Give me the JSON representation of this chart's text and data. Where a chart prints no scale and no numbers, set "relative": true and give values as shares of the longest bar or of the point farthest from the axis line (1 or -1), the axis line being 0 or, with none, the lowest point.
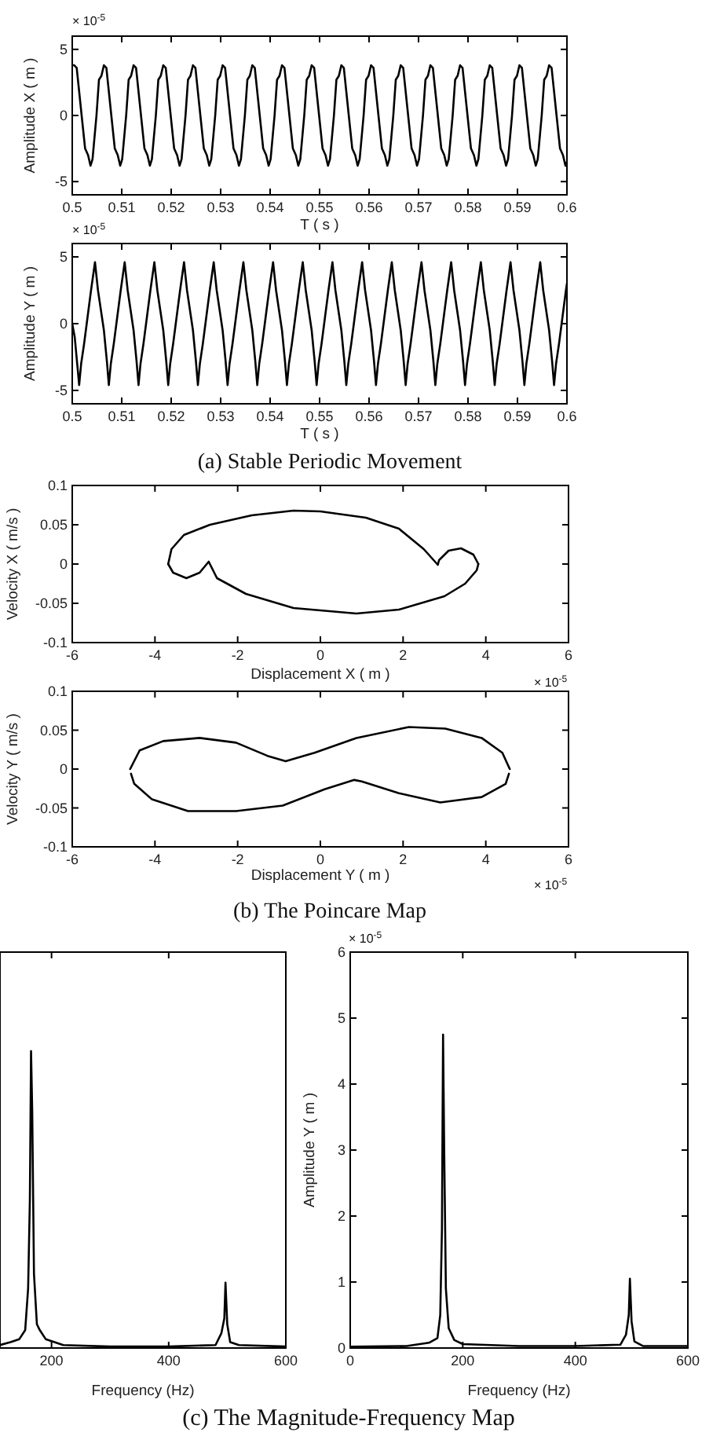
{
  "chart_data": [
    {
      "type": "line",
      "xlabel": "T ( s )",
      "ylabel": "Amplitude X ( m )",
      "xlim": [
        0.5,
        0.6
      ],
      "ylim": [
        -6,
        6
      ],
      "xticks": [
        0.5,
        0.51,
        0.52,
        0.53,
        0.54,
        0.55,
        0.56,
        0.57,
        0.58,
        0.59,
        0.6
      ],
      "yticks": [
        -5,
        0,
        5
      ],
      "annotations": [
        "× 10$^{-5}$"
      ],
      "series": [
        {
          "color": "#000000",
          "x": [
            0.5,
            0.5004,
            0.5009,
            0.5019,
            0.5026,
            0.5032,
            0.5037,
            0.5041,
            0.5049,
            0.5054,
            0.5059,
            0.5064,
            0.5069,
            0.5079,
            0.5086,
            0.5092,
            0.5097,
            0.5101,
            0.5109,
            0.5114,
            0.5119,
            0.5124,
            0.5129,
            0.5139,
            0.5146,
            0.5152,
            0.5157,
            0.5161,
            0.5169,
            0.5174,
            0.5179,
            0.5184,
            0.5189,
            0.5199,
            0.5206,
            0.5212,
            0.5217,
            0.5221,
            0.5229,
            0.5234,
            0.5239,
            0.5244,
            0.5249,
            0.5259,
            0.5266,
            0.5272,
            0.5277,
            0.5281,
            0.5289,
            0.5294,
            0.5299,
            0.5304,
            0.5309,
            0.5319,
            0.5326,
            0.5332,
            0.5337,
            0.5341,
            0.5349,
            0.5354,
            0.5359,
            0.5364,
            0.5369,
            0.5379,
            0.5386,
            0.5392,
            0.5397,
            0.5401,
            0.5409,
            0.5414,
            0.5419,
            0.5424,
            0.5429,
            0.5439,
            0.5446,
            0.5452,
            0.5457,
            0.5461,
            0.5469,
            0.5474,
            0.5479,
            0.5484,
            0.5489,
            0.5499,
            0.5506,
            0.5512,
            0.5517,
            0.5521,
            0.5529,
            0.5534,
            0.5539,
            0.5544,
            0.5549,
            0.5559,
            0.5566,
            0.5572,
            0.5577,
            0.5581,
            0.5589,
            0.5594,
            0.5599,
            0.5604,
            0.5609,
            0.5619,
            0.5626,
            0.5632,
            0.5637,
            0.5641,
            0.5649,
            0.5654,
            0.5659,
            0.5664,
            0.5669,
            0.5679,
            0.5686,
            0.5692,
            0.5697,
            0.5701,
            0.5709,
            0.5714,
            0.5719,
            0.5724,
            0.5729,
            0.5739,
            0.5746,
            0.5752,
            0.5757,
            0.5761,
            0.5769,
            0.5774,
            0.5779,
            0.5784,
            0.5789,
            0.5799,
            0.5806,
            0.5812,
            0.5817,
            0.5821,
            0.5829,
            0.5834,
            0.5839,
            0.5844,
            0.5849,
            0.5859,
            0.5866,
            0.5872,
            0.5877,
            0.5881,
            0.5889,
            0.5894,
            0.5899,
            0.5904,
            0.5909,
            0.5919,
            0.5926,
            0.5932,
            0.5937,
            0.5941,
            0.5949,
            0.5954,
            0.5959,
            0.5964,
            0.5969,
            0.5979,
            0.5986,
            0.5992,
            0.5997,
            0.6
          ],
          "values": [
            3.8,
            3.8,
            3.6,
            0,
            -2.5,
            -3,
            -3.8,
            -3.3,
            0,
            2.7,
            3,
            3.8,
            3.6,
            0,
            -2.5,
            -3,
            -3.8,
            -3.3,
            0,
            2.7,
            3,
            3.8,
            3.6,
            0,
            -2.5,
            -3,
            -3.8,
            -3.3,
            0,
            2.7,
            3,
            3.8,
            3.6,
            0,
            -2.5,
            -3,
            -3.8,
            -3.3,
            0,
            2.7,
            3,
            3.8,
            3.6,
            0,
            -2.5,
            -3,
            -3.8,
            -3.3,
            0,
            2.7,
            3,
            3.8,
            3.6,
            0,
            -2.5,
            -3,
            -3.8,
            -3.3,
            0,
            2.7,
            3,
            3.8,
            3.6,
            0,
            -2.5,
            -3,
            -3.8,
            -3.3,
            0,
            2.7,
            3,
            3.8,
            3.6,
            0,
            -2.5,
            -3,
            -3.8,
            -3.3,
            0,
            2.7,
            3,
            3.8,
            3.6,
            0,
            -2.5,
            -3,
            -3.8,
            -3.3,
            0,
            2.7,
            3,
            3.8,
            3.6,
            0,
            -2.5,
            -3,
            -3.8,
            -3.3,
            0,
            2.7,
            3,
            3.8,
            3.6,
            0,
            -2.5,
            -3,
            -3.8,
            -3.3,
            0,
            2.7,
            3,
            3.8,
            3.6,
            0,
            -2.5,
            -3,
            -3.8,
            -3.3,
            0,
            2.7,
            3,
            3.8,
            3.6,
            0,
            -2.5,
            -3,
            -3.8,
            -3.3,
            0,
            2.7,
            3,
            3.8,
            3.6,
            0,
            -2.5,
            -3,
            -3.8,
            -3.3,
            0,
            2.7,
            3,
            3.8,
            3.6,
            0,
            -2.5,
            -3,
            -3.8,
            -3.3,
            0,
            2.7,
            3,
            3.8,
            3.6,
            0,
            -2.5,
            -3,
            -3.8,
            -3.3,
            0,
            2.7,
            3,
            3.8,
            3.6,
            0,
            -2.5,
            -3,
            -3.8,
            -3.5
          ]
        }
      ]
    },
    {
      "type": "line",
      "xlabel": "T ( s )",
      "ylabel": "Amplitude Y ( m )",
      "xlim": [
        0.5,
        0.6
      ],
      "ylim": [
        -6,
        6
      ],
      "xticks": [
        0.5,
        0.51,
        0.52,
        0.53,
        0.54,
        0.55,
        0.56,
        0.57,
        0.58,
        0.59,
        0.6
      ],
      "yticks": [
        -5,
        0,
        5
      ],
      "annotations": [
        "× 10$^{-5}$",
        "(a) Stable Periodic Movement"
      ],
      "series": [
        {
          "color": "#000000",
          "x": [
            0.5,
            0.5005,
            0.501,
            0.5014,
            0.5018,
            0.5024,
            0.5031,
            0.5038,
            0.5046,
            0.5052,
            0.5058,
            0.5064,
            0.507,
            0.5074,
            0.5078,
            0.5084,
            0.5091,
            0.5098,
            0.5106,
            0.5112,
            0.5118,
            0.5124,
            0.513,
            0.5134,
            0.5138,
            0.5144,
            0.5151,
            0.5158,
            0.5166,
            0.5172,
            0.5178,
            0.5184,
            0.519,
            0.5194,
            0.5198,
            0.5204,
            0.5211,
            0.5218,
            0.5226,
            0.5232,
            0.5238,
            0.5244,
            0.525,
            0.5254,
            0.5258,
            0.5264,
            0.5271,
            0.5278,
            0.5286,
            0.5292,
            0.5298,
            0.5304,
            0.531,
            0.5314,
            0.5318,
            0.5324,
            0.5331,
            0.5338,
            0.5346,
            0.5352,
            0.5358,
            0.5364,
            0.537,
            0.5374,
            0.5378,
            0.5384,
            0.5391,
            0.5398,
            0.5406,
            0.5412,
            0.5418,
            0.5424,
            0.543,
            0.5434,
            0.5438,
            0.5444,
            0.5451,
            0.5458,
            0.5466,
            0.5472,
            0.5478,
            0.5484,
            0.549,
            0.5494,
            0.5498,
            0.5504,
            0.5511,
            0.5518,
            0.5526,
            0.5532,
            0.5538,
            0.5544,
            0.555,
            0.5554,
            0.5558,
            0.5564,
            0.5571,
            0.5578,
            0.5586,
            0.5592,
            0.5598,
            0.5604,
            0.561,
            0.5614,
            0.5618,
            0.5624,
            0.5631,
            0.5638,
            0.5646,
            0.5652,
            0.5658,
            0.5664,
            0.567,
            0.5674,
            0.5678,
            0.5684,
            0.5691,
            0.5698,
            0.5706,
            0.5712,
            0.5718,
            0.5724,
            0.573,
            0.5734,
            0.5738,
            0.5744,
            0.5751,
            0.5758,
            0.5766,
            0.5772,
            0.5778,
            0.5784,
            0.579,
            0.5794,
            0.5798,
            0.5804,
            0.5811,
            0.5818,
            0.5826,
            0.5832,
            0.5838,
            0.5844,
            0.585,
            0.5854,
            0.5858,
            0.5864,
            0.5871,
            0.5878,
            0.5886,
            0.5892,
            0.5898,
            0.5904,
            0.591,
            0.5914,
            0.5918,
            0.5924,
            0.5931,
            0.5938,
            0.5946,
            0.5952,
            0.5958,
            0.5964,
            0.597,
            0.5974,
            0.5978,
            0.5984,
            0.5991,
            0.5998,
            0.6
          ],
          "values": [
            0,
            -1,
            -3,
            -4.6,
            -3,
            -1.5,
            0.5,
            2.5,
            4.6,
            2.5,
            1,
            -0.5,
            -2.8,
            -4.6,
            -3,
            -1.5,
            0.5,
            2.5,
            4.6,
            2.5,
            1,
            -0.5,
            -2.8,
            -4.6,
            -3,
            -1.5,
            0.5,
            2.5,
            4.6,
            2.5,
            1,
            -0.5,
            -2.8,
            -4.6,
            -3,
            -1.5,
            0.5,
            2.5,
            4.6,
            2.5,
            1,
            -0.5,
            -2.8,
            -4.6,
            -3,
            -1.5,
            0.5,
            2.5,
            4.6,
            2.5,
            1,
            -0.5,
            -2.8,
            -4.6,
            -3,
            -1.5,
            0.5,
            2.5,
            4.6,
            2.5,
            1,
            -0.5,
            -2.8,
            -4.6,
            -3,
            -1.5,
            0.5,
            2.5,
            4.6,
            2.5,
            1,
            -0.5,
            -2.8,
            -4.6,
            -3,
            -1.5,
            0.5,
            2.5,
            4.6,
            2.5,
            1,
            -0.5,
            -2.8,
            -4.6,
            -3,
            -1.5,
            0.5,
            2.5,
            4.6,
            2.5,
            1,
            -0.5,
            -2.8,
            -4.6,
            -3,
            -1.5,
            0.5,
            2.5,
            4.6,
            2.5,
            1,
            -0.5,
            -2.8,
            -4.6,
            -3,
            -1.5,
            0.5,
            2.5,
            4.6,
            2.5,
            1,
            -0.5,
            -2.8,
            -4.6,
            -3,
            -1.5,
            0.5,
            2.5,
            4.6,
            2.5,
            1,
            -0.5,
            -2.8,
            -4.6,
            -3,
            -1.5,
            0.5,
            2.5,
            4.6,
            2.5,
            1,
            -0.5,
            -2.8,
            -4.6,
            -3,
            -1.5,
            0.5,
            2.5,
            4.6,
            2.5,
            1,
            -0.5,
            -2.8,
            -4.6,
            -3,
            -1.5,
            0.5,
            2.5,
            4.6,
            2.5,
            1,
            -0.5,
            -2.8,
            -4.6,
            -3,
            -1.5,
            0.5,
            2.5,
            4.6,
            2.5,
            1,
            -0.5,
            -2.8,
            -4.6,
            -3,
            -1.5,
            0.5,
            2.5,
            3
          ]
        }
      ]
    },
    {
      "type": "line",
      "xlabel": "Displacement X ( m )",
      "ylabel": "Velocity X ( m/s )",
      "xlim": [
        -6,
        6
      ],
      "ylim": [
        -0.1,
        0.1
      ],
      "xticks": [
        -6,
        -4,
        -2,
        0,
        2,
        4,
        6
      ],
      "yticks": [
        -0.1,
        -0.05,
        0,
        0.05,
        0.1
      ],
      "annotations": [
        "× 10$^{-5}$"
      ],
      "series": [
        {
          "color": "#000000",
          "x": [
            -3.68,
            -3.6,
            -3.3,
            -2.67,
            -1.66,
            -0.65,
            0,
            1.1,
            1.9,
            2.5,
            2.84,
            2.87,
            3.1,
            3.4,
            3.7,
            3.82
          ],
          "values": [
            0,
            0.019,
            0.037,
            0.05,
            0.062,
            0.068,
            0.067,
            0.059,
            0.045,
            0.019,
            -0.001,
            0.005,
            0.017,
            0.02,
            0.012,
            0
          ]
        },
        {
          "color": "#000000",
          "x": [
            -3.68,
            -3.56,
            -3.24,
            -2.92,
            -2.7,
            -2.5,
            -1.8,
            -0.65,
            0.87,
            1.9,
            3.0,
            3.5,
            3.78,
            3.82
          ],
          "values": [
            0,
            -0.011,
            -0.018,
            -0.011,
            0.003,
            -0.018,
            -0.038,
            -0.056,
            -0.063,
            -0.058,
            -0.041,
            -0.025,
            -0.008,
            0
          ]
        }
      ]
    },
    {
      "type": "line",
      "xlabel": "Displacement Y ( m )",
      "ylabel": "Velocity Y ( m/s )",
      "xlim": [
        -6,
        6
      ],
      "ylim": [
        -0.1,
        0.1
      ],
      "xticks": [
        -6,
        -4,
        -2,
        0,
        2,
        4,
        6
      ],
      "yticks": [
        -0.1,
        -0.05,
        0,
        0.05,
        0.1
      ],
      "annotations": [
        "× 10$^{-5}$",
        "(b) The Poincare Map"
      ],
      "series": [
        {
          "color": "#000000",
          "x": [
            -4.6,
            -4.37,
            -3.8,
            -2.92,
            -2.04,
            -1.28,
            -0.84,
            -0.14,
            0.87,
            2.14,
            3.02,
            3.9,
            4.4,
            4.58
          ],
          "values": [
            0,
            0.024,
            0.036,
            0.04,
            0.034,
            0.017,
            0.01,
            0.021,
            0.04,
            0.054,
            0.052,
            0.04,
            0.021,
            0
          ]
        },
        {
          "color": "#000000",
          "x": [
            -4.58,
            -4.5,
            -4.07,
            -3.2,
            -2.04,
            -0.91,
            0.1,
            0.82,
            1.0,
            1.9,
            2.9,
            3.9,
            4.48,
            4.56
          ],
          "values": [
            -0.006,
            -0.019,
            -0.039,
            -0.054,
            -0.054,
            -0.047,
            -0.026,
            -0.014,
            -0.016,
            -0.031,
            -0.043,
            -0.036,
            -0.019,
            -0.006
          ]
        }
      ]
    },
    {
      "type": "line",
      "relative": true,
      "tick_labels": "x",
      "xlabel": "Frequency (Hz)",
      "xlim": [
        112,
        600
      ],
      "xticks": [
        200,
        400,
        600
      ],
      "series": [
        {
          "color": "#000000",
          "x": [
            112,
            130,
            145,
            155,
            160,
            163,
            165,
            167,
            170,
            175,
            180,
            190,
            220,
            300,
            400,
            480,
            490,
            495,
            497,
            500,
            505,
            520,
            600
          ],
          "values": [
            0.01,
            0.02,
            0.03,
            0.06,
            0.2,
            0.5,
            1,
            0.8,
            0.25,
            0.08,
            0.06,
            0.03,
            0.01,
            0.005,
            0.005,
            0.01,
            0.05,
            0.1,
            0.22,
            0.08,
            0.02,
            0.01,
            0.005
          ]
        }
      ]
    },
    {
      "type": "line",
      "xlabel": "Frequency (Hz)",
      "ylabel": "Amplitude Y ( m )",
      "xlim": [
        0,
        600
      ],
      "ylim": [
        0,
        6
      ],
      "xticks": [
        0,
        200,
        400,
        600
      ],
      "yticks": [
        0,
        1,
        2,
        3,
        4,
        5,
        6
      ],
      "annotations": [
        "× 10$^{-5}$",
        "(c) The Magnitude-Frequency Map"
      ],
      "series": [
        {
          "color": "#000000",
          "x": [
            0,
            100,
            140,
            155,
            160,
            163,
            165,
            167,
            170,
            175,
            185,
            200,
            300,
            400,
            480,
            490,
            495,
            497,
            500,
            505,
            520,
            600
          ],
          "values": [
            0.02,
            0.03,
            0.08,
            0.15,
            0.5,
            1.8,
            4.75,
            3,
            0.9,
            0.3,
            0.12,
            0.06,
            0.03,
            0.03,
            0.05,
            0.2,
            0.5,
            1.05,
            0.4,
            0.1,
            0.03,
            0.03
          ]
        }
      ]
    }
  ]
}
